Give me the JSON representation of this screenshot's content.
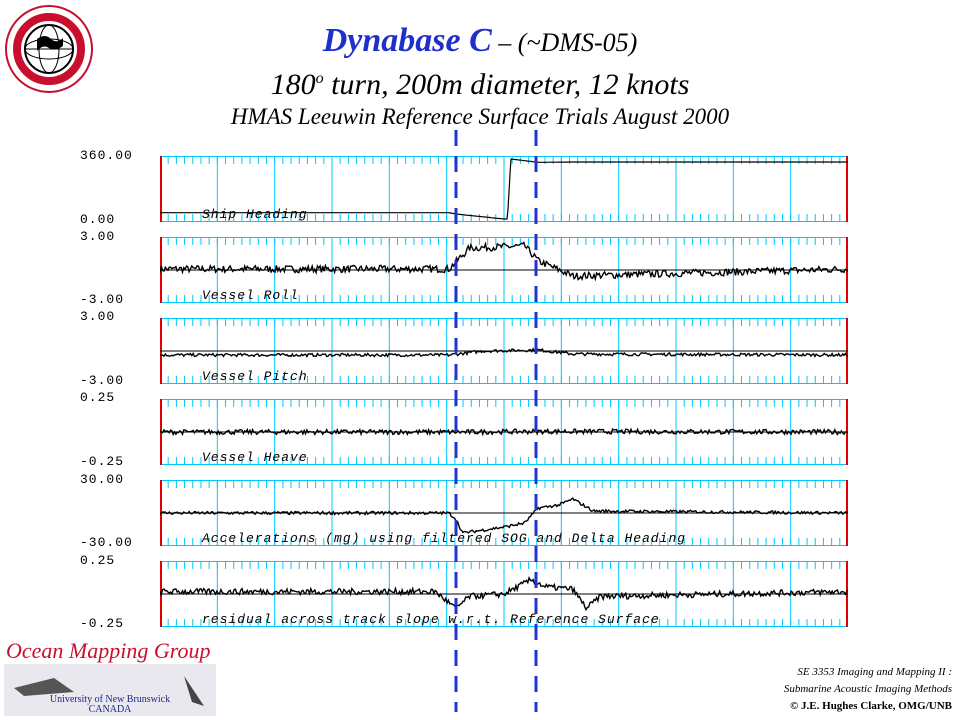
{
  "header": {
    "title_main": "Dynabase C",
    "title_suffix": " – (~DMS-05)",
    "subtitle_pre": "180",
    "subtitle_sup": "o",
    "subtitle_post": " turn, 200m diameter, 12 knots",
    "trial": "HMAS Leeuwin Reference Surface Trials August 2000"
  },
  "logos": {
    "circle_text": "GEODESY AND GEOMATICS ENGINEERING",
    "circle_short": "UNB",
    "group_name": "Ocean Mapping Group",
    "university_line1": "University of New Brunswick",
    "university_line2": "CANADA"
  },
  "course": {
    "line1": "SE 3353 Imaging and Mapping II :",
    "line2": "Submarine Acoustic Imaging Methods",
    "copyright": "© J.E. Hughes Clarke, OMG/UNB"
  },
  "colors": {
    "grid": "#00c8ff",
    "trace": "#000000",
    "edge": "#e00000",
    "marker": "#2233cc",
    "title_blue": "#1f2fcc",
    "brand_red": "#c8102e"
  },
  "chart_data": [
    {
      "type": "line",
      "title": "Ship Heading",
      "ylim": [
        0,
        360
      ],
      "ymax_label": "360.00",
      "ymin_label": "0.00",
      "grid": true,
      "series": [
        {
          "x": [
            0,
            0.42,
            0.43,
            0.5,
            0.505,
            0.51,
            0.55,
            0.6,
            1.0
          ],
          "values": [
            38,
            38,
            30,
            0,
            0,
            360,
            340,
            342,
            342
          ]
        }
      ]
    },
    {
      "type": "line",
      "title": "Vessel Roll",
      "ylim": [
        -3,
        3
      ],
      "ymax_label": "3.00",
      "ymin_label": "-3.00",
      "grid": true,
      "series": [
        {
          "x": [
            0,
            0.42,
            0.43,
            0.45,
            0.53,
            0.55,
            0.6,
            1.0
          ],
          "values": [
            0.1,
            0.1,
            0.8,
            2.2,
            2.4,
            0.9,
            -0.6,
            0.1
          ]
        }
      ]
    },
    {
      "type": "line",
      "title": "Vessel Pitch",
      "ylim": [
        -3,
        3
      ],
      "ymax_label": "3.00",
      "ymin_label": "-3.00",
      "grid": true,
      "series": [
        {
          "x": [
            0,
            0.42,
            0.47,
            0.55,
            0.6,
            1.0
          ],
          "values": [
            -0.4,
            -0.4,
            0.0,
            0.1,
            -0.3,
            -0.4
          ]
        }
      ]
    },
    {
      "type": "line",
      "title": "Vessel Heave",
      "ylim": [
        -0.25,
        0.25
      ],
      "ymax_label": "0.25",
      "ymin_label": "-0.25",
      "grid": true,
      "series": [
        {
          "x": [
            0,
            0.45,
            0.55,
            1.0
          ],
          "values": [
            0.0,
            0.0,
            0.005,
            0.0
          ]
        }
      ]
    },
    {
      "type": "line",
      "title": "Accelerations (mg) using filtered SOG and Delta Heading",
      "ylim": [
        -30,
        30
      ],
      "ymax_label": "30.00",
      "ymin_label": "-30.00",
      "grid": true,
      "series": [
        {
          "x": [
            0,
            0.42,
            0.43,
            0.44,
            0.5,
            0.53,
            0.55,
            0.58,
            0.6,
            0.63,
            1.0
          ],
          "values": [
            0,
            0,
            -6,
            -20,
            -14,
            -10,
            5,
            8,
            14,
            2,
            0
          ]
        }
      ]
    },
    {
      "type": "line",
      "title": "residual across track slope w.r.t. Reference Surface",
      "ylim": [
        -0.25,
        0.25
      ],
      "ymax_label": "0.25",
      "ymin_label": "-0.25",
      "grid": true,
      "series": [
        {
          "x": [
            0,
            0.4,
            0.43,
            0.45,
            0.5,
            0.54,
            0.56,
            0.6,
            0.62,
            0.64,
            1.0
          ],
          "values": [
            0.02,
            0.02,
            -0.12,
            -0.02,
            0.0,
            0.12,
            0.06,
            0.04,
            -0.12,
            -0.02,
            0.02
          ]
        }
      ]
    }
  ]
}
